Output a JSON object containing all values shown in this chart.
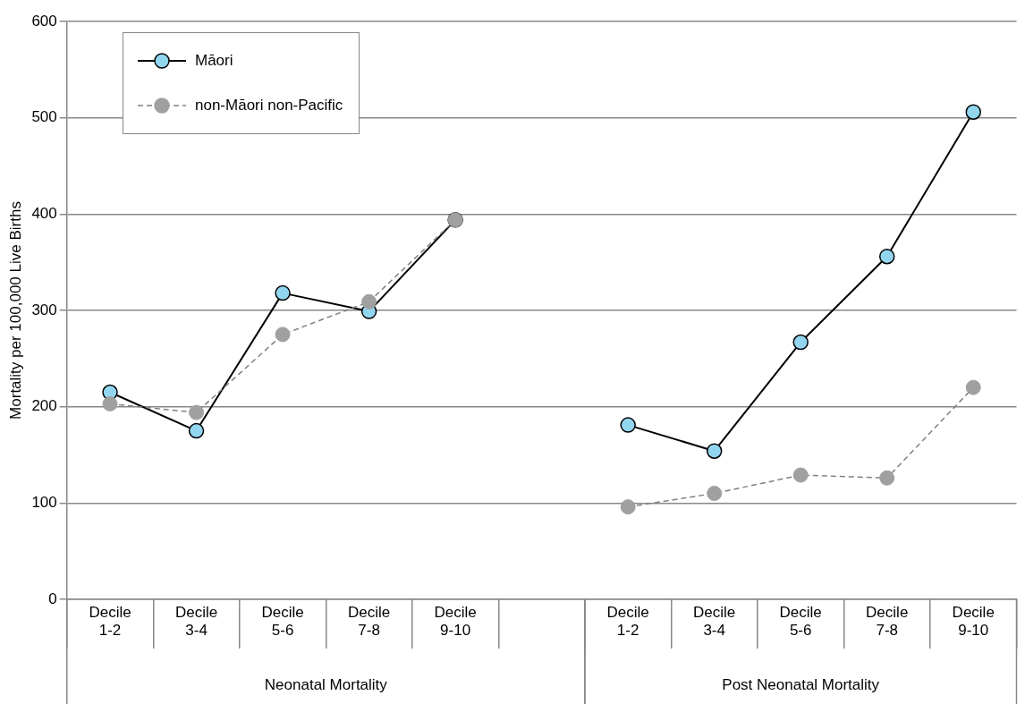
{
  "chart_data": {
    "type": "line",
    "ylabel": "Mortality per 100,000 Live Births",
    "categories": [
      "Decile 1-2",
      "Decile 3-4",
      "Decile 5-6",
      "Decile 7-8",
      "Decile 9-10",
      null,
      "Decile 1-2",
      "Decile 3-4",
      "Decile 5-6",
      "Decile 7-8",
      "Decile 9-10"
    ],
    "series": [
      {
        "name": "Māori",
        "color": "#92d5ef",
        "line_style": "solid",
        "values": [
          215,
          175,
          318,
          299,
          394,
          null,
          181,
          154,
          267,
          356,
          506
        ]
      },
      {
        "name": "non-Māori non-Pacific",
        "color": "#a0a0a0",
        "line_style": "dashed",
        "values": [
          203,
          194,
          275,
          309,
          394,
          null,
          96,
          110,
          129,
          126,
          220
        ]
      }
    ],
    "annotations": [
      "Neonatal Mortality",
      "Post Neonatal Mortality"
    ],
    "ylim": [
      0,
      600
    ],
    "yticks": [
      0,
      100,
      200,
      300,
      400,
      500,
      600
    ],
    "grid": "y",
    "legend": "top left",
    "marker": "circle"
  }
}
